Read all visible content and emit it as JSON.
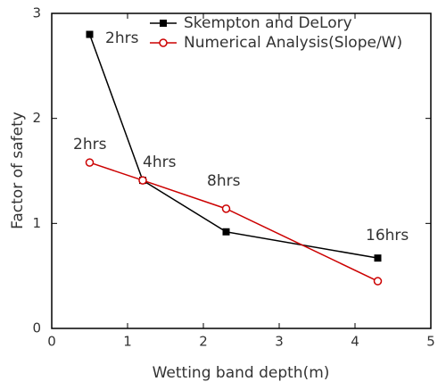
{
  "chart_data": {
    "type": "line",
    "x_label": "Wetting band depth(m)",
    "y_label": "Factor of safety",
    "xlim": [
      0,
      5
    ],
    "xticks": [
      0,
      1,
      2,
      3,
      4,
      5
    ],
    "ylim": [
      0,
      3
    ],
    "yticks": [
      0,
      1,
      2,
      3
    ],
    "series": [
      {
        "name": "Skempton and DeLory",
        "color": "#000000",
        "marker": "square",
        "x": [
          0.5,
          1.2,
          2.3,
          4.3
        ],
        "values": [
          2.8,
          1.41,
          0.92,
          0.67
        ]
      },
      {
        "name": "Numerical Analysis(Slope/W)",
        "color": "#cc0000",
        "marker": "circle",
        "x": [
          0.5,
          1.2,
          2.3,
          4.3
        ],
        "values": [
          1.58,
          1.41,
          1.14,
          0.45
        ]
      }
    ],
    "annotations": [
      "2hrs",
      "2hrs",
      "4hrs",
      "8hrs",
      "16hrs"
    ],
    "legend": "upper right"
  }
}
